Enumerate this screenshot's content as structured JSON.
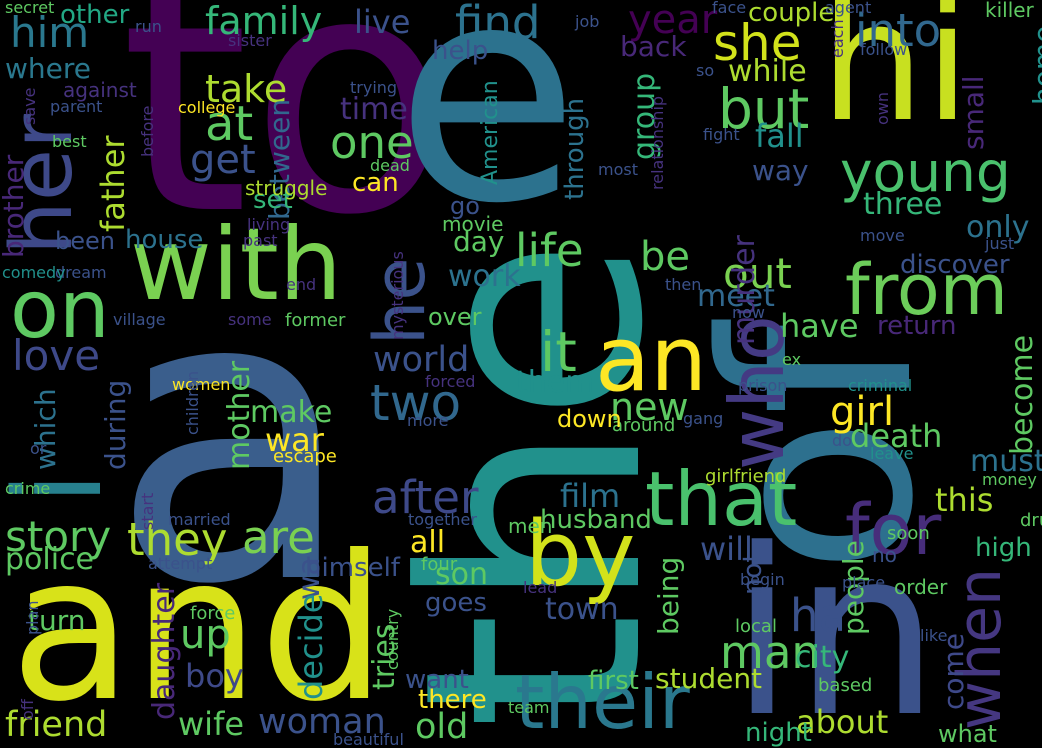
{
  "background": "#000000",
  "palette": {
    "purple": "#440154",
    "indigo": "#3b528b",
    "teal": "#2c728e",
    "green": "#21918c",
    "sea": "#28ae80",
    "lime": "#5ec962",
    "yellowgreen": "#addc30",
    "yellow": "#fde725"
  },
  "words": [
    {
      "text": "to",
      "color": "#440154"
    },
    {
      "text": "e",
      "color": "#2c728e"
    },
    {
      "text": "hi",
      "color": "#c8e020"
    },
    {
      "text": "a",
      "color": "#3a5e8c"
    },
    {
      "text": "the",
      "color": "#21918c"
    },
    {
      "text": "of",
      "color": "#2d708e"
    },
    {
      "text": "in",
      "color": "#3b528b"
    },
    {
      "text": "and",
      "color": "#d8e219"
    },
    {
      "text": "with",
      "color": "#7ad151"
    },
    {
      "text": "her",
      "color": "#3e4989"
    },
    {
      "text": "on",
      "color": "#5ec962"
    },
    {
      "text": "i",
      "color": "#27808e"
    },
    {
      "text": "an",
      "color": "#fde725"
    },
    {
      "text": "who",
      "color": "#443a83"
    },
    {
      "text": "from",
      "color": "#6ccd5a"
    },
    {
      "text": "by",
      "color": "#d2e21b"
    },
    {
      "text": "for",
      "color": "#472d7b"
    },
    {
      "text": "that",
      "color": "#4ac16d"
    },
    {
      "text": "their",
      "color": "#2a788e"
    },
    {
      "text": "he",
      "color": "#3b528b"
    },
    {
      "text": "when",
      "color": "#453781"
    },
    {
      "text": "family",
      "color": "#35b779"
    },
    {
      "text": "find",
      "color": "#2c728e"
    },
    {
      "text": "year",
      "color": "#440154"
    },
    {
      "text": "she",
      "color": "#d2e21b"
    },
    {
      "text": "into",
      "color": "#31688e"
    },
    {
      "text": "him",
      "color": "#2a788e"
    },
    {
      "text": "where",
      "color": "#2a788e"
    },
    {
      "text": "other",
      "color": "#22a884"
    },
    {
      "text": "live",
      "color": "#3b528b"
    },
    {
      "text": "take",
      "color": "#addc30"
    },
    {
      "text": "at",
      "color": "#5ec962"
    },
    {
      "text": "get",
      "color": "#3b528b"
    },
    {
      "text": "one",
      "color": "#5ec962"
    },
    {
      "text": "but",
      "color": "#5ec962"
    },
    {
      "text": "young",
      "color": "#4ac16d"
    },
    {
      "text": "while",
      "color": "#addc30"
    },
    {
      "text": "fall",
      "color": "#21918c"
    },
    {
      "text": "time",
      "color": "#46327e"
    },
    {
      "text": "between",
      "color": "#31688e"
    },
    {
      "text": "father",
      "color": "#addc30"
    },
    {
      "text": "brother",
      "color": "#482878"
    },
    {
      "text": "set",
      "color": "#35b779"
    },
    {
      "text": "house",
      "color": "#2c728e"
    },
    {
      "text": "been",
      "color": "#3b528b"
    },
    {
      "text": "life",
      "color": "#5ec962"
    },
    {
      "text": "be",
      "color": "#5ec962"
    },
    {
      "text": "day",
      "color": "#5ec962"
    },
    {
      "text": "work",
      "color": "#2c728e"
    },
    {
      "text": "love",
      "color": "#3e4989"
    },
    {
      "text": "world",
      "color": "#3b528b"
    },
    {
      "text": "two",
      "color": "#31688e"
    },
    {
      "text": "it",
      "color": "#5ec962"
    },
    {
      "text": "them",
      "color": "#21918c"
    },
    {
      "text": "out",
      "color": "#7ad151"
    },
    {
      "text": "meet",
      "color": "#31688e"
    },
    {
      "text": "have",
      "color": "#5ec962"
    },
    {
      "text": "return",
      "color": "#482878"
    },
    {
      "text": "discover",
      "color": "#3b528b"
    },
    {
      "text": "three",
      "color": "#35b779"
    },
    {
      "text": "only",
      "color": "#2c728e"
    },
    {
      "text": "small",
      "color": "#482878"
    },
    {
      "text": "home",
      "color": "#21918c"
    },
    {
      "text": "way",
      "color": "#3b528b"
    },
    {
      "text": "couple",
      "color": "#addc30"
    },
    {
      "text": "which",
      "color": "#2c728e"
    },
    {
      "text": "during",
      "color": "#3b528b"
    },
    {
      "text": "mother",
      "color": "#5ec962"
    },
    {
      "text": "make",
      "color": "#5ec962"
    },
    {
      "text": "war",
      "color": "#fde725"
    },
    {
      "text": "after",
      "color": "#3e4989"
    },
    {
      "text": "new",
      "color": "#5ec962"
    },
    {
      "text": "girl",
      "color": "#fde725"
    },
    {
      "text": "death",
      "color": "#5ec962"
    },
    {
      "text": "become",
      "color": "#5ec962"
    },
    {
      "text": "school",
      "color": "#3e4989"
    },
    {
      "text": "must",
      "color": "#2c728e"
    },
    {
      "text": "this",
      "color": "#addc30"
    },
    {
      "text": "story",
      "color": "#5ec962"
    },
    {
      "text": "they",
      "color": "#addc30"
    },
    {
      "text": "are",
      "color": "#7ad151"
    },
    {
      "text": "film",
      "color": "#2c728e"
    },
    {
      "text": "husband",
      "color": "#5ec962"
    },
    {
      "text": "will",
      "color": "#3b528b"
    },
    {
      "text": "people",
      "color": "#5ec962"
    },
    {
      "text": "high",
      "color": "#35b779"
    },
    {
      "text": "police",
      "color": "#5ec962"
    },
    {
      "text": "wa",
      "color": "#3b528b"
    },
    {
      "text": "himself",
      "color": "#3b528b"
    },
    {
      "text": "all",
      "color": "#fde725"
    },
    {
      "text": "son",
      "color": "#5ec962"
    },
    {
      "text": "being",
      "color": "#5ec962"
    },
    {
      "text": "town",
      "color": "#3b528b"
    },
    {
      "text": "man",
      "color": "#5ec962"
    },
    {
      "text": "ha",
      "color": "#3b528b"
    },
    {
      "text": "city",
      "color": "#35b779"
    },
    {
      "text": "come",
      "color": "#3e4989"
    },
    {
      "text": "up",
      "color": "#5ec962"
    },
    {
      "text": "boy",
      "color": "#3e4989"
    },
    {
      "text": "decide",
      "color": "#21918c"
    },
    {
      "text": "daughter",
      "color": "#482878"
    },
    {
      "text": "turn",
      "color": "#5ec962"
    },
    {
      "text": "tries",
      "color": "#5ec962"
    },
    {
      "text": "goes",
      "color": "#3b528b"
    },
    {
      "text": "first",
      "color": "#5ec962"
    },
    {
      "text": "student",
      "color": "#addc30"
    },
    {
      "text": "want",
      "color": "#3b528b"
    },
    {
      "text": "there",
      "color": "#fde725"
    },
    {
      "text": "friend",
      "color": "#addc30"
    },
    {
      "text": "wife",
      "color": "#5ec962"
    },
    {
      "text": "woman",
      "color": "#3b528b"
    },
    {
      "text": "old",
      "color": "#5ec962"
    },
    {
      "text": "about",
      "color": "#addc30"
    },
    {
      "text": "night",
      "color": "#35b779"
    },
    {
      "text": "what",
      "color": "#5ec962"
    },
    {
      "text": "not",
      "color": "#3b528b"
    },
    {
      "text": "murder",
      "color": "#46327e"
    },
    {
      "text": "group",
      "color": "#35b779"
    },
    {
      "text": "through",
      "color": "#2c728e"
    },
    {
      "text": "help",
      "color": "#3b528b"
    },
    {
      "text": "back",
      "color": "#482878"
    },
    {
      "text": "American",
      "color": "#21918c"
    },
    {
      "text": "can",
      "color": "#fde725"
    },
    {
      "text": "dead",
      "color": "#5ec962"
    },
    {
      "text": "struggle",
      "color": "#addc30"
    },
    {
      "text": "living",
      "color": "#46327e"
    },
    {
      "text": "past",
      "color": "#46327e"
    },
    {
      "text": "go",
      "color": "#3b528b"
    },
    {
      "text": "movie",
      "color": "#5ec962"
    },
    {
      "text": "mysterious",
      "color": "#46327e"
    },
    {
      "text": "over",
      "color": "#5ec962"
    },
    {
      "text": "former",
      "color": "#5ec962"
    },
    {
      "text": "some",
      "color": "#46327e"
    },
    {
      "text": "end",
      "color": "#46327e"
    },
    {
      "text": "village",
      "color": "#3b528b"
    },
    {
      "text": "dream",
      "color": "#3b528b"
    },
    {
      "text": "comedy",
      "color": "#21918c"
    },
    {
      "text": "secret",
      "color": "#5ec962"
    },
    {
      "text": "run",
      "color": "#3b528b"
    },
    {
      "text": "sister",
      "color": "#46327e"
    },
    {
      "text": "against",
      "color": "#46327e"
    },
    {
      "text": "parent",
      "color": "#3b528b"
    },
    {
      "text": "college",
      "color": "#fde725"
    },
    {
      "text": "trying",
      "color": "#3b528b"
    },
    {
      "text": "best",
      "color": "#5ec962"
    },
    {
      "text": "before",
      "color": "#46327e"
    },
    {
      "text": "save",
      "color": "#46327e"
    },
    {
      "text": "job",
      "color": "#3b528b"
    },
    {
      "text": "face",
      "color": "#3b528b"
    },
    {
      "text": "agent",
      "color": "#3b528b"
    },
    {
      "text": "killer",
      "color": "#5ec962"
    },
    {
      "text": "each",
      "color": "#46327e"
    },
    {
      "text": "follow",
      "color": "#3b528b"
    },
    {
      "text": "so",
      "color": "#3b528b"
    },
    {
      "text": "relationship",
      "color": "#46327e"
    },
    {
      "text": "fight",
      "color": "#3b528b"
    },
    {
      "text": "own",
      "color": "#46327e"
    },
    {
      "text": "most",
      "color": "#3b528b"
    },
    {
      "text": "move",
      "color": "#3b528b"
    },
    {
      "text": "just",
      "color": "#3b528b"
    },
    {
      "text": "then",
      "color": "#3b528b"
    },
    {
      "text": "now",
      "color": "#3b528b"
    },
    {
      "text": "ex",
      "color": "#5ec962"
    },
    {
      "text": "prison",
      "color": "#3b528b"
    },
    {
      "text": "criminal",
      "color": "#21918c"
    },
    {
      "text": "do",
      "color": "#3b528b"
    },
    {
      "text": "leave",
      "color": "#21918c"
    },
    {
      "text": "women",
      "color": "#fde725"
    },
    {
      "text": "forced",
      "color": "#46327e"
    },
    {
      "text": "more",
      "color": "#3b528b"
    },
    {
      "text": "around",
      "color": "#5ec962"
    },
    {
      "text": "down",
      "color": "#fde725"
    },
    {
      "text": "gang",
      "color": "#3b528b"
    },
    {
      "text": "children",
      "color": "#3b528b"
    },
    {
      "text": "escape",
      "color": "#fde725"
    },
    {
      "text": "girlfriend",
      "color": "#addc30"
    },
    {
      "text": "money",
      "color": "#5ec962"
    },
    {
      "text": "or",
      "color": "#3b528b"
    },
    {
      "text": "crime",
      "color": "#5ec962"
    },
    {
      "text": "start",
      "color": "#46327e"
    },
    {
      "text": "married",
      "color": "#3b528b"
    },
    {
      "text": "together",
      "color": "#3b528b"
    },
    {
      "text": "men",
      "color": "#5ec962"
    },
    {
      "text": "soon",
      "color": "#5ec962"
    },
    {
      "text": "drug",
      "color": "#5ec962"
    },
    {
      "text": "no",
      "color": "#3b528b"
    },
    {
      "text": "attempt",
      "color": "#3b528b"
    },
    {
      "text": "four",
      "color": "#5ec962"
    },
    {
      "text": "lead",
      "color": "#46327e"
    },
    {
      "text": "begin",
      "color": "#3b528b"
    },
    {
      "text": "place",
      "color": "#3b528b"
    },
    {
      "text": "order",
      "color": "#5ec962"
    },
    {
      "text": "force",
      "color": "#5ec962"
    },
    {
      "text": "country",
      "color": "#5ec962"
    },
    {
      "text": "local",
      "color": "#5ec962"
    },
    {
      "text": "like",
      "color": "#3b528b"
    },
    {
      "text": "plan",
      "color": "#3b528b"
    },
    {
      "text": "based",
      "color": "#5ec962"
    },
    {
      "text": "off",
      "color": "#46327e"
    },
    {
      "text": "team",
      "color": "#5ec962"
    },
    {
      "text": "beautiful",
      "color": "#3b528b"
    }
  ]
}
